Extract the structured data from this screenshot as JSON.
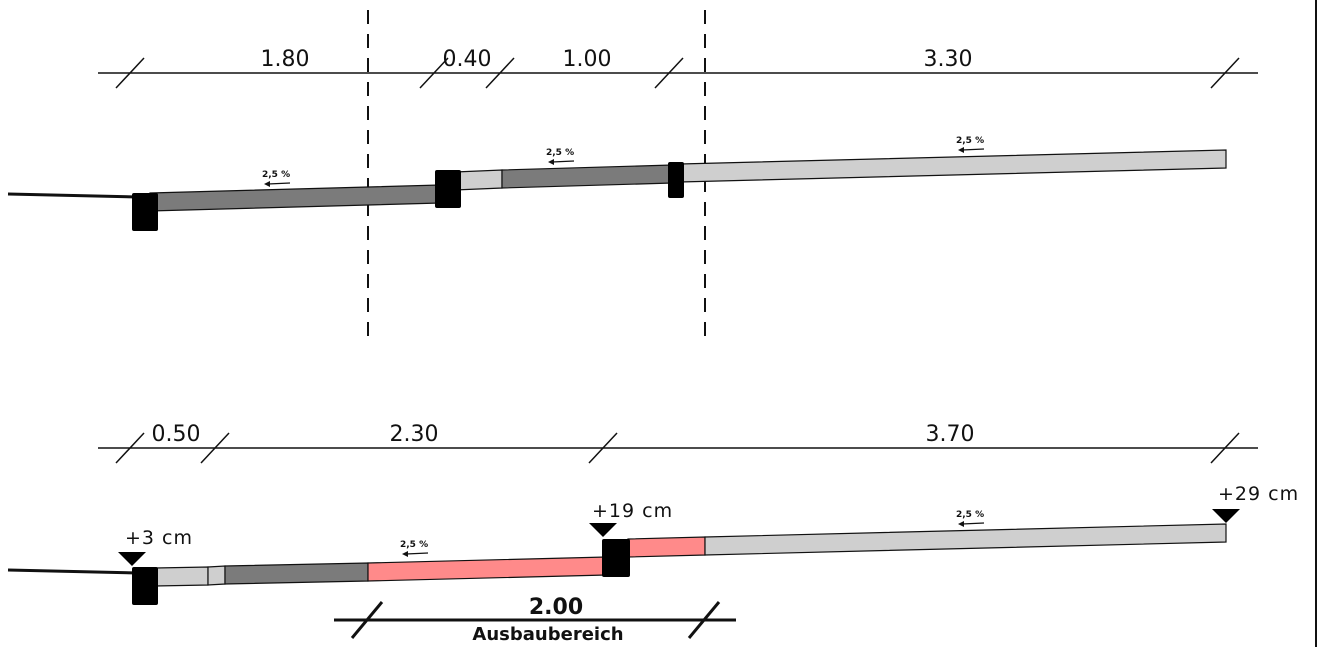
{
  "colors": {
    "dark_gray": "#7b7b7b",
    "light_gray": "#cfcfcf",
    "red_new": "#ff8a8a",
    "curb": "#000000",
    "line": "#111111"
  },
  "top_section": {
    "dimensions": [
      "1.80",
      "0.40",
      "1.00",
      "3.30"
    ],
    "slopes": [
      "2,5 %",
      "2,5 %",
      "2,5 %"
    ]
  },
  "bottom_section": {
    "dimensions": [
      "0.50",
      "2.30",
      "3.70"
    ],
    "slopes": [
      "2,5 %",
      "2,5 %"
    ],
    "elevations": [
      "+3 cm",
      "+19 cm",
      "+29 cm"
    ],
    "extension": {
      "width": "2.00",
      "label": "Ausbaubereich"
    }
  }
}
